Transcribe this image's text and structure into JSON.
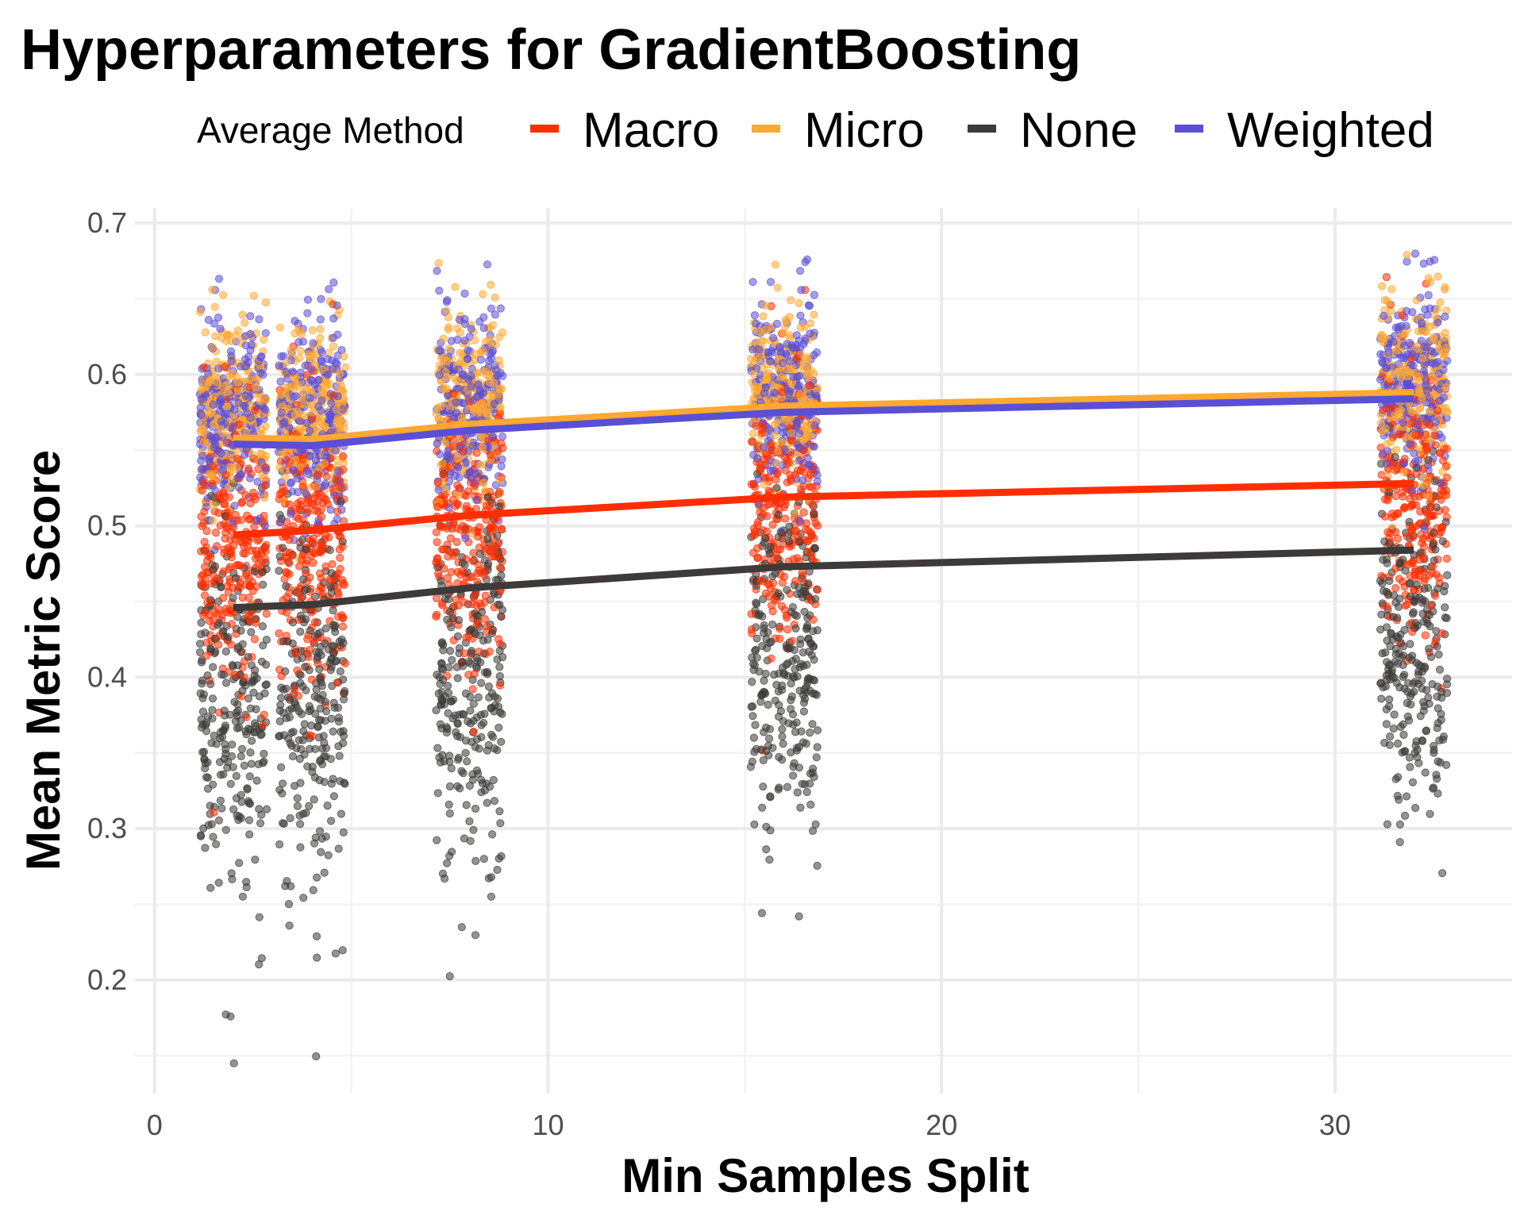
{
  "chart_data": {
    "type": "scatter",
    "title": "Hyperparameters for GradientBoosting",
    "xlabel": "Min Samples Split",
    "ylabel": "Mean Metric Score",
    "xlim": [
      -0.5,
      34.5
    ],
    "ylim": [
      0.125,
      0.71
    ],
    "x_ticks": [
      0,
      10,
      20,
      30
    ],
    "y_ticks": [
      0.2,
      0.3,
      0.4,
      0.5,
      0.6,
      0.7
    ],
    "x_tick_labels": [
      "0",
      "10",
      "20",
      "30"
    ],
    "y_tick_labels": [
      "0.2",
      "0.3",
      "0.4",
      "0.5",
      "0.6",
      "0.7"
    ],
    "grid": true,
    "legend": {
      "title": "Average Method",
      "position": "top",
      "entries": [
        "Macro",
        "Micro",
        "None",
        "Weighted"
      ]
    },
    "categories_x": [
      2,
      4,
      8,
      16,
      32
    ],
    "series": [
      {
        "name": "Macro",
        "color": "#ff2e00",
        "line_x": [
          2,
          4,
          8,
          16,
          32
        ],
        "line_y": [
          0.494,
          0.497,
          0.507,
          0.519,
          0.528
        ],
        "point_spread": {
          "center": [
            0.485,
            0.487,
            0.497,
            0.509,
            0.515
          ],
          "sd": 0.045
        }
      },
      {
        "name": "Micro",
        "color": "#ffa832",
        "line_x": [
          2,
          4,
          8,
          16,
          32
        ],
        "line_y": [
          0.558,
          0.557,
          0.567,
          0.579,
          0.588
        ],
        "point_spread": {
          "center": [
            0.575,
            0.575,
            0.583,
            0.59,
            0.595
          ],
          "sd": 0.03
        }
      },
      {
        "name": "None",
        "color": "#3d3a39",
        "line_x": [
          2,
          4,
          8,
          16,
          32
        ],
        "line_y": [
          0.446,
          0.448,
          0.459,
          0.473,
          0.484
        ],
        "point_spread": {
          "center": [
            0.39,
            0.39,
            0.4,
            0.41,
            0.415
          ],
          "sd": 0.055
        }
      },
      {
        "name": "Weighted",
        "color": "#5b4fd6",
        "line_x": [
          2,
          4,
          8,
          16,
          32
        ],
        "line_y": [
          0.554,
          0.553,
          0.563,
          0.575,
          0.584
        ],
        "point_spread": {
          "center": [
            0.57,
            0.57,
            0.58,
            0.586,
            0.592
          ],
          "sd": 0.032
        }
      }
    ]
  }
}
